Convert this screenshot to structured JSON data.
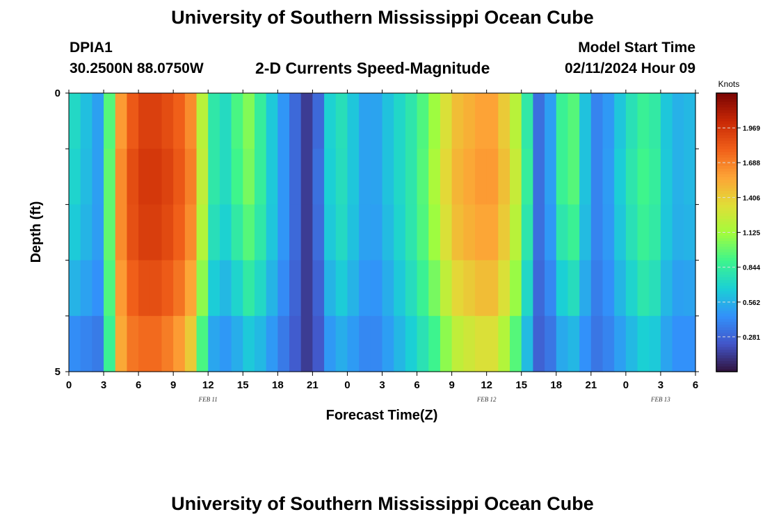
{
  "header": {
    "title": "University of Southern Mississippi Ocean Cube",
    "station": "DPIA1",
    "coords": "30.2500N  88.0750W",
    "subtitle": "2-D Currents Speed-Magnitude",
    "model_label": "Model Start Time",
    "model_time": "02/11/2024 Hour 09"
  },
  "footer": {
    "title": "University of Southern Mississippi Ocean Cube"
  },
  "chart_data": {
    "type": "heatmap",
    "title": "2-D Currents Speed-Magnitude",
    "xlabel": "Forecast Time(Z)",
    "ylabel": "Depth (ft)",
    "x_tick_labels": [
      "0",
      "3",
      "6",
      "9",
      "12",
      "15",
      "18",
      "21",
      "0",
      "3",
      "6",
      "9",
      "12",
      "15",
      "18",
      "21",
      "0",
      "3",
      "6"
    ],
    "x_range_hours": [
      0,
      54
    ],
    "date_labels": [
      {
        "text": "FEB 11",
        "hour": 12
      },
      {
        "text": "FEB 12",
        "hour": 36
      },
      {
        "text": "FEB 13",
        "hour": 51
      }
    ],
    "y_tick_labels": [
      "0",
      "5"
    ],
    "y_range": [
      0,
      5
    ],
    "depth_bins": 5,
    "colorbar": {
      "label": "Knots",
      "min": 0.0,
      "max": 2.25,
      "ticks": [
        0.281,
        0.562,
        0.844,
        1.125,
        1.406,
        1.688,
        1.969
      ],
      "tick_labels": [
        "0.281",
        "0.562",
        "0.844",
        "1.125",
        "1.406",
        "1.688",
        "1.969"
      ]
    },
    "time_series_hours": [
      0,
      3,
      4,
      5,
      6,
      7,
      8,
      9,
      10,
      11,
      12,
      14,
      15,
      16,
      18,
      19.5,
      20.5,
      21,
      22,
      23,
      24,
      26,
      27,
      30,
      32,
      33,
      35,
      36,
      37,
      38,
      39,
      39.5,
      40,
      41,
      42,
      43,
      44,
      45,
      46,
      48,
      50,
      52,
      54
    ],
    "speed_by_depth_row": [
      [
        0.78,
        0.45,
        1.45,
        1.75,
        1.9,
        1.95,
        1.9,
        1.85,
        1.75,
        1.55,
        0.85,
        0.7,
        1.15,
        0.95,
        0.55,
        0.3,
        0.14,
        0.05,
        0.55,
        0.82,
        0.7,
        0.45,
        0.58,
        0.85,
        1.2,
        1.45,
        1.55,
        1.6,
        1.55,
        1.3,
        1.1,
        0.82,
        0.35,
        0.3,
        0.7,
        1.05,
        0.85,
        0.4,
        0.4,
        0.72,
        0.92,
        0.55,
        0.6
      ],
      [
        0.75,
        0.45,
        1.5,
        1.8,
        1.95,
        1.97,
        1.95,
        1.88,
        1.78,
        1.6,
        0.85,
        0.7,
        1.1,
        0.95,
        0.55,
        0.3,
        0.14,
        0.1,
        0.55,
        0.8,
        0.7,
        0.45,
        0.58,
        0.85,
        1.25,
        1.48,
        1.58,
        1.62,
        1.58,
        1.35,
        1.15,
        0.85,
        0.35,
        0.3,
        0.7,
        1.05,
        0.85,
        0.4,
        0.4,
        0.75,
        0.95,
        0.55,
        0.6
      ],
      [
        0.7,
        0.45,
        1.5,
        1.8,
        1.92,
        1.95,
        1.92,
        1.85,
        1.75,
        1.55,
        0.8,
        0.65,
        1.0,
        0.9,
        0.55,
        0.3,
        0.14,
        0.1,
        0.52,
        0.78,
        0.68,
        0.45,
        0.55,
        0.85,
        1.2,
        1.45,
        1.55,
        1.58,
        1.55,
        1.3,
        1.1,
        0.8,
        0.35,
        0.3,
        0.65,
        0.95,
        0.8,
        0.4,
        0.4,
        0.72,
        0.92,
        0.55,
        0.58
      ],
      [
        0.6,
        0.42,
        1.45,
        1.75,
        1.85,
        1.88,
        1.85,
        1.78,
        1.68,
        1.45,
        0.7,
        0.55,
        0.85,
        0.8,
        0.5,
        0.28,
        0.14,
        0.1,
        0.45,
        0.7,
        0.62,
        0.42,
        0.5,
        0.8,
        1.1,
        1.35,
        1.45,
        1.5,
        1.45,
        1.2,
        1.0,
        0.72,
        0.32,
        0.28,
        0.55,
        0.8,
        0.7,
        0.38,
        0.38,
        0.65,
        0.85,
        0.5,
        0.52
      ],
      [
        0.45,
        0.35,
        1.4,
        1.7,
        1.75,
        1.78,
        1.75,
        1.65,
        1.55,
        1.3,
        0.55,
        0.45,
        0.65,
        0.65,
        0.42,
        0.25,
        0.14,
        0.1,
        0.38,
        0.58,
        0.52,
        0.38,
        0.45,
        0.72,
        0.95,
        1.2,
        1.3,
        1.35,
        1.3,
        1.05,
        0.85,
        0.6,
        0.3,
        0.25,
        0.45,
        0.62,
        0.55,
        0.35,
        0.35,
        0.55,
        0.72,
        0.45,
        0.45
      ]
    ]
  }
}
